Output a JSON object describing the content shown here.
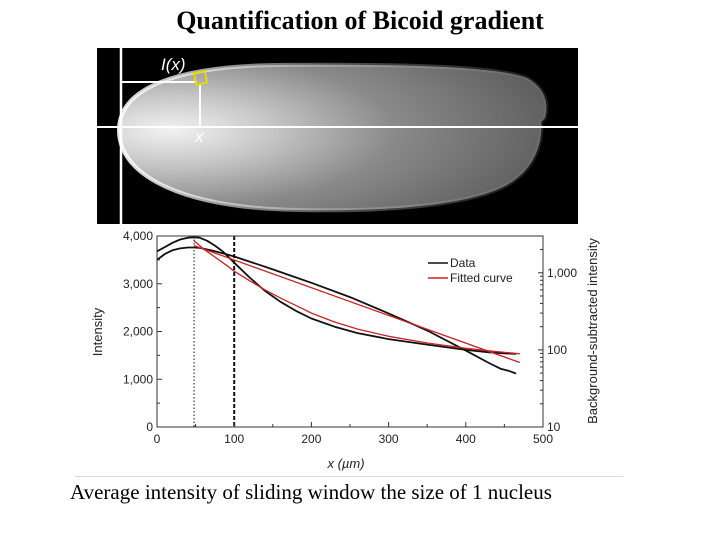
{
  "slide": {
    "title": "Quantification of Bicoid gradient",
    "caption": "Average intensity of sliding window the size of 1 nucleus"
  },
  "image_panel": {
    "label_ix": "I(x)",
    "label_x": "x",
    "colors": {
      "background": "#000000",
      "guide_lines": "#ffffff",
      "window_box": "#e8d800"
    }
  },
  "chart_data": {
    "type": "line",
    "xlabel": "x (µm)",
    "ylabel": "Intensity",
    "y2label": "Background-subtracted intensity",
    "xlim": [
      0,
      500
    ],
    "ylim": [
      0,
      4000
    ],
    "y2lim": [
      10,
      3000
    ],
    "y2scale": "log",
    "x_ticks": [
      "0",
      "100",
      "200",
      "300",
      "400",
      "500"
    ],
    "y_ticks": [
      "0",
      "1,000",
      "2,000",
      "3,000",
      "4,000"
    ],
    "y2_ticks": [
      "10",
      "100",
      "1,000"
    ],
    "legend": {
      "position": "top-right",
      "entries": [
        "Data",
        "Fitted curve"
      ]
    },
    "vlines": [
      {
        "x": 48,
        "style": "dotted"
      },
      {
        "x": 100,
        "style": "dashed"
      }
    ],
    "series": [
      {
        "name": "Data",
        "axis": "left",
        "color": "#111111",
        "x": [
          0,
          10,
          20,
          30,
          40,
          48,
          55,
          70,
          85,
          100,
          115,
          130,
          150,
          175,
          200,
          250,
          300,
          350,
          400,
          430,
          445,
          455,
          465
        ],
        "y": [
          3500,
          3620,
          3700,
          3740,
          3760,
          3760,
          3750,
          3700,
          3640,
          3570,
          3490,
          3410,
          3300,
          3160,
          3020,
          2720,
          2380,
          2020,
          1600,
          1340,
          1220,
          1180,
          1120
        ]
      },
      {
        "name": "Data (log)",
        "axis": "right",
        "color": "#111111",
        "x": [
          0,
          10,
          20,
          30,
          40,
          48,
          55,
          65,
          75,
          85,
          100,
          120,
          140,
          160,
          180,
          200,
          230,
          260,
          300,
          350,
          400,
          430,
          450,
          465
        ],
        "y": [
          1900,
          2150,
          2450,
          2700,
          2850,
          2880,
          2850,
          2600,
          2250,
          1900,
          1350,
          870,
          580,
          420,
          320,
          255,
          200,
          165,
          138,
          117,
          100,
          93,
          90,
          89
        ]
      },
      {
        "name": "Fitted curve",
        "axis": "left",
        "color": "#cc2222",
        "x": [
          48,
          470
        ],
        "y": [
          3800,
          1350
        ]
      },
      {
        "name": "Fitted curve (log)",
        "axis": "right",
        "color": "#cc2222",
        "x": [
          48,
          60,
          75,
          90,
          100,
          120,
          140,
          160,
          180,
          200,
          230,
          260,
          300,
          350,
          400,
          440,
          470
        ],
        "y": [
          2600,
          2050,
          1600,
          1250,
          1050,
          790,
          600,
          470,
          375,
          300,
          230,
          186,
          150,
          123,
          105,
          95,
          89
        ]
      }
    ]
  }
}
